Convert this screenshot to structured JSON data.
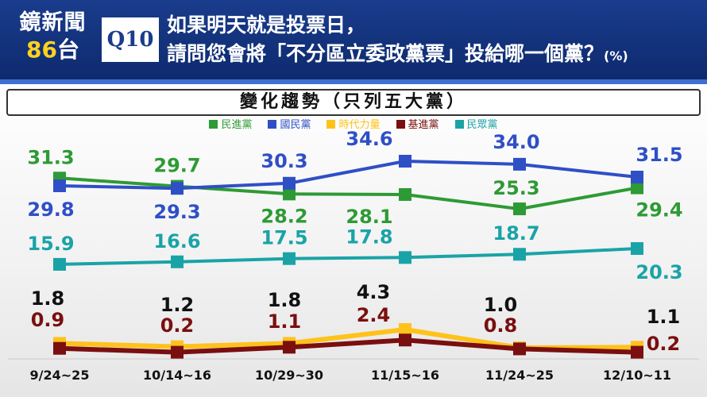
{
  "header": {
    "brand_name": "鏡新聞",
    "brand_channel_num": "86",
    "brand_channel_suffix": "台",
    "question_id": "Q10",
    "question_line1": "如果明天就是投票日，",
    "question_line2": "請問您會將「不分區立委政黨票」投給哪一個黨？",
    "question_unit": "(%)"
  },
  "colors": {
    "dpp": "#2e9a35",
    "kmt": "#2f4fc6",
    "npp": "#ffc21a",
    "tsp": "#7a0f0f",
    "tpp": "#1aa3a7",
    "small_label": "#111111"
  },
  "chart_data": {
    "type": "line",
    "title": "變化趨勢（只列五大黨）",
    "xlabel": "",
    "ylabel": "",
    "categories": [
      "9/24~25",
      "10/14~16",
      "10/29~30",
      "11/15~16",
      "11/24~25",
      "12/10~11"
    ],
    "legend_position": "top-center",
    "grid": false,
    "series": [
      {
        "name": "民進黨",
        "color": "#2e9a35",
        "values": [
          31.3,
          29.7,
          28.2,
          28.1,
          25.3,
          29.4
        ]
      },
      {
        "name": "國民黨",
        "color": "#2f4fc6",
        "values": [
          29.8,
          29.3,
          30.3,
          34.6,
          34.0,
          31.5
        ]
      },
      {
        "name": "時代力量",
        "color": "#ffc21a",
        "values": [
          1.8,
          1.2,
          1.8,
          4.3,
          1.0,
          1.1
        ]
      },
      {
        "name": "基進黨",
        "color": "#7a0f0f",
        "values": [
          0.9,
          0.2,
          1.1,
          2.4,
          0.8,
          0.2
        ]
      },
      {
        "name": "民眾黨",
        "color": "#1aa3a7",
        "values": [
          15.9,
          16.6,
          17.5,
          17.8,
          18.7,
          20.3
        ]
      }
    ]
  }
}
